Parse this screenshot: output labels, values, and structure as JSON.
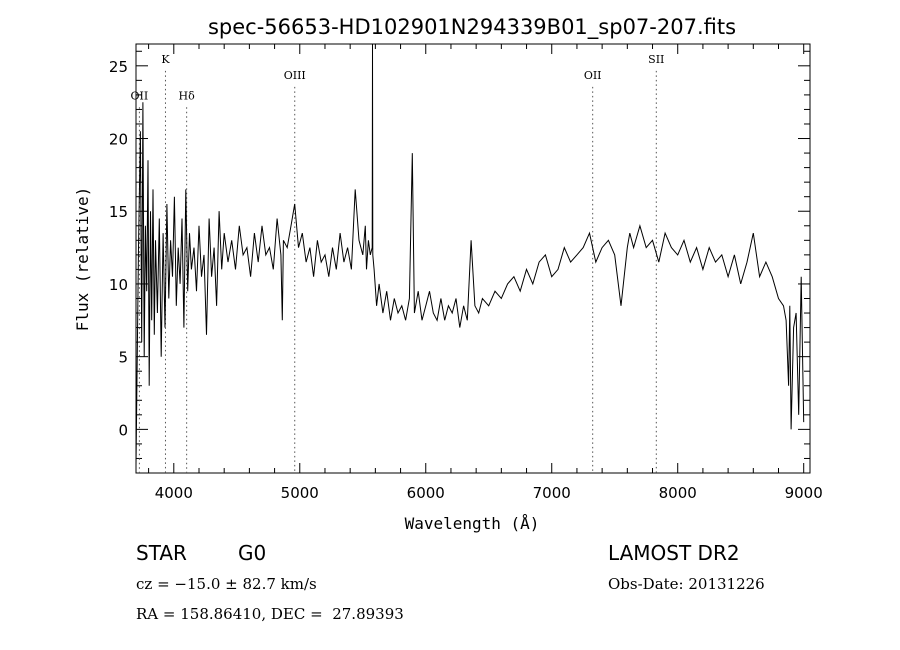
{
  "chart_data": {
    "type": "line",
    "title": "spec-56653-HD102901N294339B01_sp07-207.fits",
    "xlabel": "Wavelength (Å)",
    "ylabel": "Flux (relative)",
    "xlim": [
      3700,
      9050
    ],
    "ylim": [
      -3,
      26.5
    ],
    "xticks": [
      4000,
      5000,
      6000,
      7000,
      8000,
      9000
    ],
    "yticks": [
      0,
      5,
      10,
      15,
      20,
      25
    ],
    "grid": false,
    "line_color": "#000000",
    "lines": [
      {
        "label": "OII",
        "x": 3727,
        "label_y": 22.7
      },
      {
        "label": "K",
        "x": 3934,
        "label_y": 25.2
      },
      {
        "label": "Hδ",
        "x": 4102,
        "label_y": 22.7
      },
      {
        "label": "OIII",
        "x": 4960,
        "label_y": 24.1
      },
      {
        "label": "OII",
        "x": 7325,
        "label_y": 24.1
      },
      {
        "label": "SII",
        "x": 7830,
        "label_y": 25.2
      }
    ],
    "series": [
      {
        "x": [
          3700,
          3720,
          3735,
          3745,
          3755,
          3765,
          3775,
          3785,
          3795,
          3805,
          3815,
          3825,
          3835,
          3845,
          3855,
          3870,
          3885,
          3900,
          3915,
          3930,
          3945,
          3960,
          3975,
          3990,
          4005,
          4020,
          4035,
          4050,
          4065,
          4080,
          4095,
          4110,
          4125,
          4140,
          4160,
          4180,
          4200,
          4220,
          4240,
          4260,
          4280,
          4300,
          4320,
          4340,
          4360,
          4380,
          4400,
          4430,
          4460,
          4490,
          4520,
          4550,
          4580,
          4610,
          4640,
          4670,
          4700,
          4730,
          4760,
          4790,
          4820,
          4850,
          4861,
          4870,
          4900,
          4930,
          4960,
          4990,
          5020,
          5050,
          5080,
          5110,
          5140,
          5170,
          5200,
          5230,
          5260,
          5290,
          5320,
          5350,
          5380,
          5410,
          5440,
          5470,
          5500,
          5520,
          5530,
          5545,
          5560,
          5575,
          5577,
          5580,
          5590,
          5610,
          5630,
          5660,
          5690,
          5720,
          5750,
          5780,
          5810,
          5840,
          5870,
          5893,
          5910,
          5940,
          5970,
          6000,
          6030,
          6060,
          6090,
          6120,
          6150,
          6180,
          6210,
          6240,
          6270,
          6300,
          6330,
          6360,
          6390,
          6420,
          6450,
          6500,
          6550,
          6600,
          6650,
          6700,
          6750,
          6800,
          6850,
          6900,
          6950,
          7000,
          7050,
          7100,
          7150,
          7200,
          7250,
          7300,
          7350,
          7400,
          7450,
          7500,
          7550,
          7600,
          7620,
          7650,
          7700,
          7750,
          7800,
          7850,
          7900,
          7950,
          8000,
          8050,
          8100,
          8150,
          8200,
          8250,
          8300,
          8350,
          8400,
          8450,
          8500,
          8550,
          8600,
          8650,
          8700,
          8750,
          8800,
          8840,
          8860,
          8880,
          8890,
          8900,
          8920,
          8940,
          8960,
          8980,
          9000
        ],
        "y": [
          -2.5,
          12.5,
          20.5,
          6.0,
          22.5,
          5.0,
          14.0,
          9.5,
          18.5,
          3.0,
          15.0,
          7.5,
          16.5,
          6.5,
          13.0,
          8.0,
          14.5,
          5.0,
          13.5,
          7.0,
          15.5,
          9.0,
          13.0,
          10.5,
          16.0,
          8.5,
          12.5,
          10.0,
          14.5,
          7.0,
          16.5,
          9.5,
          13.5,
          11.0,
          12.5,
          9.5,
          14.0,
          10.5,
          12.0,
          6.5,
          14.5,
          10.5,
          12.5,
          8.5,
          15.0,
          11.0,
          13.5,
          11.5,
          13.0,
          11.0,
          14.0,
          12.0,
          12.5,
          10.5,
          13.5,
          11.5,
          14.0,
          12.0,
          12.5,
          11.0,
          14.5,
          12.0,
          7.5,
          13.0,
          12.5,
          14.0,
          15.5,
          12.5,
          13.5,
          11.5,
          12.5,
          10.5,
          13.0,
          11.5,
          12.0,
          10.5,
          12.5,
          11.0,
          13.5,
          11.5,
          12.5,
          11.0,
          16.5,
          13.0,
          12.0,
          14.0,
          11.0,
          13.0,
          12.0,
          12.5,
          26.5,
          12.0,
          11.0,
          8.5,
          10.0,
          8.0,
          9.5,
          7.5,
          9.0,
          8.0,
          8.5,
          7.5,
          9.0,
          19.0,
          8.0,
          9.5,
          7.5,
          8.5,
          9.5,
          8.0,
          7.5,
          9.0,
          7.5,
          8.5,
          8.0,
          9.0,
          7.0,
          8.5,
          7.5,
          13.0,
          8.5,
          8.0,
          9.0,
          8.5,
          9.5,
          9.0,
          10.0,
          10.5,
          9.5,
          11.0,
          10.0,
          11.5,
          12.0,
          10.5,
          11.0,
          12.5,
          11.5,
          12.0,
          12.5,
          13.5,
          11.5,
          12.5,
          13.0,
          12.0,
          8.5,
          12.5,
          13.5,
          12.5,
          14.0,
          12.5,
          13.0,
          11.5,
          13.5,
          12.5,
          12.0,
          13.0,
          11.5,
          12.5,
          11.0,
          12.5,
          11.5,
          12.0,
          10.5,
          12.0,
          10.0,
          11.5,
          13.5,
          10.5,
          11.5,
          10.5,
          9.0,
          8.5,
          7.5,
          3.0,
          8.5,
          0.0,
          7.0,
          8.0,
          1.0,
          10.5,
          0.5
        ]
      }
    ]
  },
  "info": {
    "obj_class": "STAR",
    "subclass": "G0",
    "survey": "LAMOST DR2",
    "cz": "cz = −15.0 ± 82.7 km/s",
    "obs_date": "Obs-Date: 20131226",
    "coords": "RA = 158.86410, DEC =  27.89393"
  }
}
